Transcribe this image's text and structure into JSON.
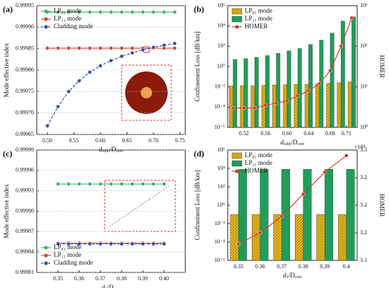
{
  "chart_data": [
    {
      "type": "line",
      "panel": "(a)",
      "ylabel": "Mode effective index",
      "xlabel": [
        {
          "text": "d"
        },
        {
          "text": "tube",
          "sub": true
        },
        {
          "text": "/D"
        },
        {
          "text": "core",
          "sub": true
        }
      ],
      "x": [
        0.5,
        0.52,
        0.54,
        0.56,
        0.58,
        0.6,
        0.62,
        0.64,
        0.66,
        0.68,
        0.7,
        0.72,
        0.74
      ],
      "xlim": [
        0.48,
        0.76
      ],
      "xticks": [
        {
          "value": 0.5,
          "label": "0.50"
        },
        0.55,
        {
          "value": 0.6,
          "label": "0.60"
        },
        0.65,
        {
          "value": 0.7,
          "label": "0.70"
        },
        0.75
      ],
      "ylim": [
        0.99965,
        0.99995
      ],
      "yticks": [
        0.99965,
        {
          "value": 0.9997,
          "label": "0.99970"
        },
        0.99975,
        {
          "value": 0.9998,
          "label": "0.99980"
        },
        0.99985,
        {
          "value": 0.9999,
          "label": "0.99990"
        },
        0.99995
      ],
      "grid": true,
      "legend": "upper left",
      "series": [
        {
          "name": "LP₀₁ mode",
          "color": "#3cb371",
          "values": [
            0.999935,
            0.999935,
            0.999935,
            0.999935,
            0.999935,
            0.999935,
            0.999935,
            0.999935,
            0.999935,
            0.999935,
            0.999935,
            0.999935,
            0.999935
          ]
        },
        {
          "name": "LP₁₁ mode",
          "color": "#d9432a",
          "values": [
            0.999851,
            0.999851,
            0.999851,
            0.999851,
            0.999851,
            0.999851,
            0.999851,
            0.999851,
            0.999851,
            0.999851,
            0.999851,
            0.999851,
            0.999851
          ]
        },
        {
          "name": "Cladding mode",
          "color": "#3b4fa0",
          "dash": true,
          "values": [
            0.99967,
            0.999715,
            0.99975,
            0.999775,
            0.999795,
            0.99981,
            0.999822,
            0.999832,
            0.99984,
            0.999847,
            0.999853,
            0.999858,
            0.999862
          ]
        }
      ]
    },
    {
      "type": "bar",
      "panel": "(b)",
      "ylabel": "Confinement Loss [dB/km]",
      "y2label": "HOMER",
      "xlabel": [
        {
          "text": "d"
        },
        {
          "text": "tube",
          "sub": true
        },
        {
          "text": "/D"
        },
        {
          "text": "core",
          "sub": true
        }
      ],
      "x": [
        0.5,
        0.52,
        0.54,
        0.56,
        0.58,
        0.6,
        0.62,
        0.64,
        0.66,
        0.68,
        0.7,
        0.72
      ],
      "xlim": [
        0.49,
        0.73
      ],
      "xticks": [
        0.52,
        0.56,
        {
          "value": 0.6,
          "label": "0.60"
        },
        0.64,
        0.68,
        0.71
      ],
      "ylog": true,
      "ylim": [
        1e-06,
        1000000
      ],
      "yticks": [
        {
          "value": 1e-06,
          "label": "10⁻⁶"
        },
        {
          "value": 0.0001,
          "label": "10⁻⁴"
        },
        {
          "value": 0.01,
          "label": "10⁻²"
        },
        {
          "value": 1,
          "label": "10⁰"
        },
        {
          "value": 100,
          "label": "10²"
        },
        {
          "value": 10000,
          "label": "10⁴"
        },
        {
          "value": 1000000,
          "label": "10⁶"
        }
      ],
      "y2log": true,
      "y2lim": [
        1,
        1000
      ],
      "y2ticks": [
        {
          "value": 1,
          "label": "10⁰"
        },
        {
          "value": 10,
          "label": "10¹"
        },
        {
          "value": 100,
          "label": "10²"
        },
        {
          "value": 1000,
          "label": "10³"
        }
      ],
      "legend": "upper left",
      "series": [
        {
          "name": "LP₀₁ mode",
          "color": "#e8b820",
          "values": [
            0.012,
            0.013,
            0.013,
            0.014,
            0.015,
            0.016,
            0.017,
            0.018,
            0.02,
            0.022,
            0.025,
            0.03
          ]
        },
        {
          "name": "LP₁₁ mode",
          "color": "#1f9e5a",
          "values": [
            5,
            6,
            8,
            12,
            20,
            35,
            60,
            150,
            400,
            2000,
            30000,
            80000
          ]
        },
        {
          "name": "HOMER",
          "color": "#c8402a",
          "axis": "y2",
          "values": [
            3,
            3,
            3,
            3.5,
            4,
            4.5,
            6,
            8,
            12,
            25,
            100,
            500
          ]
        }
      ]
    },
    {
      "type": "line",
      "panel": "(c)",
      "ylabel": "Mode effective index",
      "xlabel": [
        {
          "text": "d"
        },
        {
          "text": "1",
          "sub": true
        },
        {
          "text": "/D"
        },
        {
          "text": "core",
          "sub": true
        }
      ],
      "x": [
        0.35,
        0.355,
        0.36,
        0.365,
        0.37,
        0.375,
        0.38,
        0.385,
        0.39,
        0.395,
        0.4
      ],
      "xlim": [
        0.34,
        0.41
      ],
      "xticks": [
        0.35,
        0.36,
        0.37,
        0.38,
        0.39,
        {
          "value": 0.4,
          "label": "0.40"
        }
      ],
      "ylim": [
        0.99981,
        0.99999
      ],
      "yticks": [
        0.99981,
        0.99984,
        0.99987,
        {
          "value": 0.9999,
          "label": "0.99990"
        },
        0.99993,
        0.99996,
        0.99999
      ],
      "grid": true,
      "legend": "lower left",
      "series": [
        {
          "name": "LP₀₁ mode",
          "color": "#3cb371",
          "values": [
            0.99994,
            0.99994,
            0.99994,
            0.99994,
            0.99994,
            0.99994,
            0.99994,
            0.99994,
            0.99994,
            0.99994,
            0.99994
          ]
        },
        {
          "name": "LP₁₁ mode",
          "color": "#d9432a",
          "values": [
            0.999853,
            0.999853,
            0.999853,
            0.999853,
            0.999853,
            0.999853,
            0.999853,
            0.999853,
            0.999853,
            0.999853,
            0.999853
          ]
        },
        {
          "name": "Cladding mode",
          "color": "#3b4fa0",
          "dash": true,
          "values": [
            0.999852,
            0.999852,
            0.999852,
            0.999852,
            0.999852,
            0.999852,
            0.999852,
            0.999852,
            0.999852,
            0.999852,
            0.999852
          ]
        }
      ]
    },
    {
      "type": "bar",
      "panel": "(d)",
      "ylabel": "Confinement Loss [dB/km]",
      "y2label": "HOMER",
      "y2_multiplier": "×10⁴",
      "xlabel": [
        {
          "text": "d"
        },
        {
          "text": "1",
          "sub": true
        },
        {
          "text": "/D"
        },
        {
          "text": "core",
          "sub": true
        }
      ],
      "categories": [
        "0.35",
        "0.36",
        "0.37",
        "0.38",
        "0.39",
        "0.4"
      ],
      "ylog": true,
      "ylim": [
        1e-06,
        1000000
      ],
      "yticks": [
        {
          "value": 1e-06,
          "label": "10⁻⁶"
        },
        {
          "value": 0.0001,
          "label": "10⁻⁴"
        },
        {
          "value": 0.01,
          "label": "10⁻²"
        },
        {
          "value": 1,
          "label": "10⁰"
        },
        {
          "value": 100,
          "label": "10²"
        },
        {
          "value": 10000,
          "label": "10⁴"
        },
        {
          "value": 1000000,
          "label": "10⁶"
        }
      ],
      "y2lim": [
        3.1,
        3.3
      ],
      "y2ticks": [
        3.1,
        {
          "value": 3.15,
          "label": "3.2"
        },
        3.2,
        {
          "value": 3.25,
          "label": "3.2"
        },
        3.3
      ],
      "legend": "upper left",
      "series": [
        {
          "name": "LP₀₁ mode",
          "color": "#e8b820",
          "values": [
            0.1,
            0.1,
            0.1,
            0.1,
            0.1,
            0.1
          ]
        },
        {
          "name": "LP₁₁ mode",
          "color": "#1f9e5a",
          "values": [
            8000,
            8000,
            8000,
            8000,
            8000,
            8000
          ]
        },
        {
          "name": "HOMER",
          "color": "#c8402a",
          "axis": "y2",
          "values": [
            3.13,
            3.15,
            3.18,
            3.22,
            3.26,
            3.29
          ]
        }
      ]
    }
  ]
}
